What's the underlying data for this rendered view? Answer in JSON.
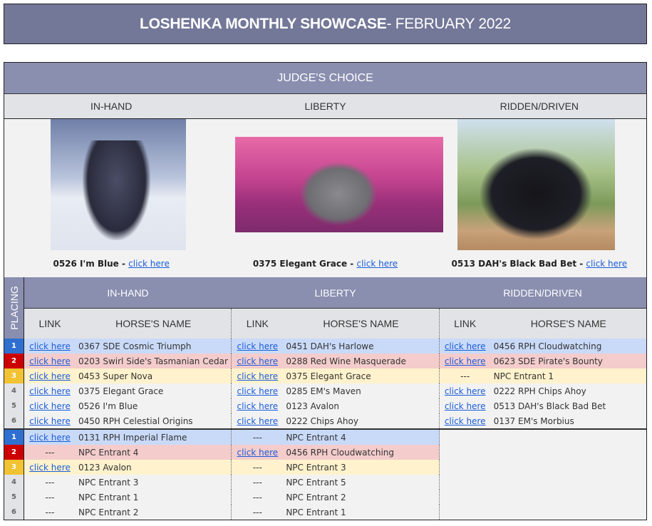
{
  "title": {
    "bold": "LOSHENKA MONTHLY SHOWCASE",
    "rest": " - FEBRUARY 2022"
  },
  "judges_choice": {
    "heading": "JUDGE'S CHOICE",
    "divisions": [
      {
        "label": "IN-HAND",
        "horse": "0526 I'm Blue",
        "link": "click here"
      },
      {
        "label": "LIBERTY",
        "horse": "0375 Elegant Grace",
        "link": "click here"
      },
      {
        "label": "RIDDEN/DRIVEN",
        "horse": "0513 DAH's Black Bad Bet",
        "link": "click here"
      }
    ]
  },
  "results": {
    "placing_label": "PLACING",
    "divisions": [
      "IN-HAND",
      "LIBERTY",
      "RIDDEN/DRIVEN"
    ],
    "link_header": "LINK",
    "name_header": "HORSE'S NAME",
    "placing_colors": {
      "1": "#2f6fd0",
      "2": "#cc0000",
      "3": "#f1c232"
    },
    "groups": [
      {
        "rows": [
          {
            "place": "1",
            "entries": [
              {
                "link": "click here",
                "name": "0367 SDE Cosmic Triumph"
              },
              {
                "link": "click here",
                "name": "0451 DAH's Harlowe"
              },
              {
                "link": "click here",
                "name": "0456 RPH Cloudwatching"
              }
            ]
          },
          {
            "place": "2",
            "entries": [
              {
                "link": "click here",
                "name": "0203 Swirl Side's Tasmanian Cedar"
              },
              {
                "link": "click here",
                "name": "0288 Red Wine Masquerade"
              },
              {
                "link": "click here",
                "name": "0623 SDE Pirate's Bounty"
              }
            ]
          },
          {
            "place": "3",
            "entries": [
              {
                "link": "click here",
                "name": "0453 Super Nova"
              },
              {
                "link": "click here",
                "name": "0375 Elegant Grace"
              },
              {
                "nolink": "---",
                "name": "NPC Entrant 1"
              }
            ]
          },
          {
            "place": "4",
            "entries": [
              {
                "link": "click here",
                "name": "0375 Elegant Grace"
              },
              {
                "link": "click here",
                "name": "0285 EM's Maven"
              },
              {
                "link": "click here",
                "name": "0222 RPH Chips Ahoy"
              }
            ]
          },
          {
            "place": "5",
            "entries": [
              {
                "link": "click here",
                "name": "0526 I'm Blue"
              },
              {
                "link": "click here",
                "name": "0123 Avalon"
              },
              {
                "link": "click here",
                "name": "0513 DAH's Black Bad Bet"
              }
            ]
          },
          {
            "place": "6",
            "entries": [
              {
                "link": "click here",
                "name": "0450 RPH Celestial Origins"
              },
              {
                "link": "click here",
                "name": "0222 Chips Ahoy"
              },
              {
                "link": "click here",
                "name": "0137 EM's Morbius"
              }
            ]
          }
        ]
      },
      {
        "rows": [
          {
            "place": "1",
            "entries": [
              {
                "link": "click here",
                "name": "0131 RPH Imperial Flame"
              },
              {
                "nolink": "---",
                "name": "NPC Entrant 4"
              },
              null
            ]
          },
          {
            "place": "2",
            "entries": [
              {
                "nolink": "---",
                "name": "NPC Entrant 4"
              },
              {
                "link": "click here",
                "name": "0456 RPH Cloudwatching"
              },
              null
            ]
          },
          {
            "place": "3",
            "entries": [
              {
                "link": "click here",
                "name": "0123 Avalon"
              },
              {
                "nolink": "---",
                "name": "NPC Entrant 3"
              },
              null
            ]
          },
          {
            "place": "4",
            "entries": [
              {
                "nolink": "---",
                "name": "NPC Entrant 3"
              },
              {
                "nolink": "---",
                "name": "NPC Entrant 5"
              },
              null
            ]
          },
          {
            "place": "5",
            "entries": [
              {
                "nolink": "---",
                "name": "NPC Entrant 1"
              },
              {
                "nolink": "---",
                "name": "NPC Entrant 2"
              },
              null
            ]
          },
          {
            "place": "6",
            "entries": [
              {
                "nolink": "---",
                "name": "NPC Entrant 2"
              },
              {
                "nolink": "---",
                "name": "NPC Entrant 1"
              },
              null
            ]
          }
        ]
      }
    ]
  }
}
